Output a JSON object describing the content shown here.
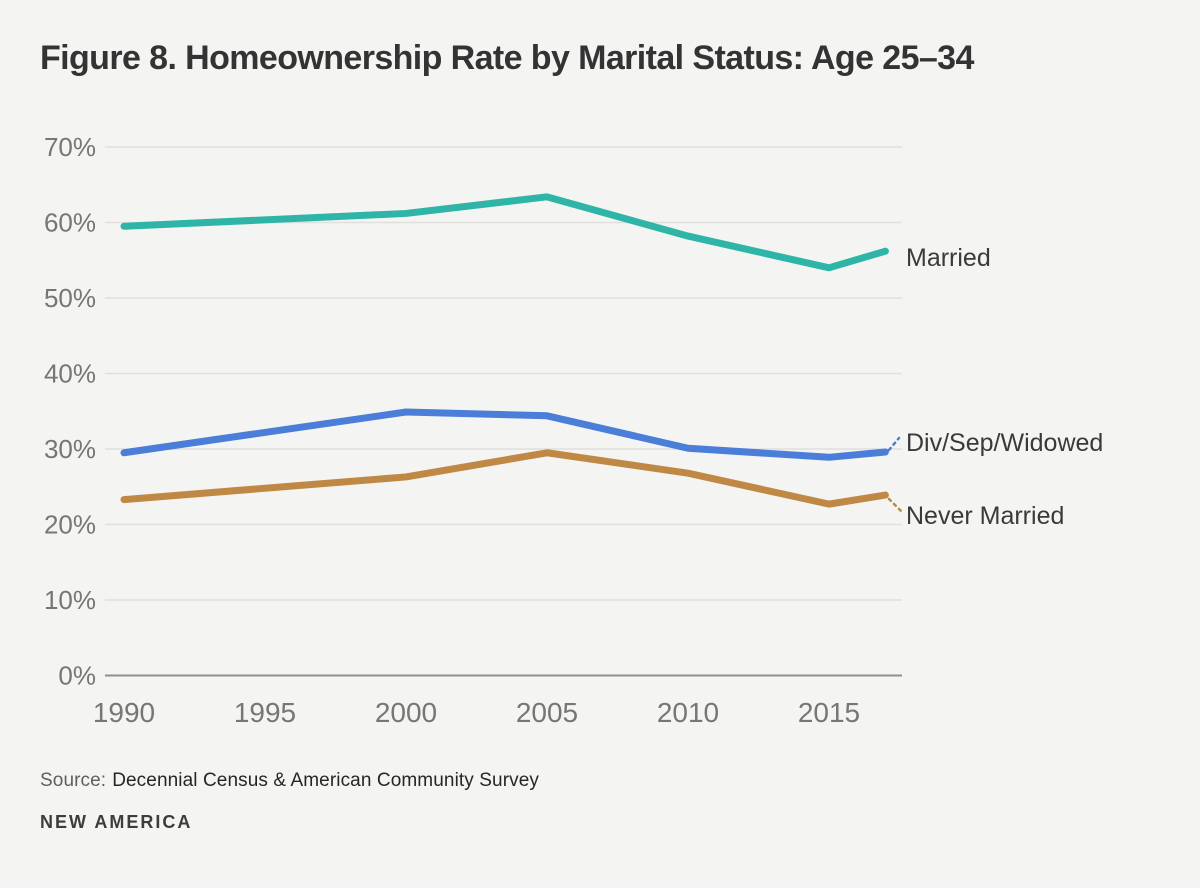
{
  "header": {
    "title": "Figure 8. Homeownership Rate by Marital Status: Age 25–34"
  },
  "chart_data": {
    "type": "line",
    "x": [
      1990,
      2000,
      2005,
      2010,
      2015,
      2017
    ],
    "x_tick_labels": [
      "1990",
      "1995",
      "2000",
      "2005",
      "2010",
      "2015"
    ],
    "x_ticks": [
      1990,
      1995,
      2000,
      2005,
      2010,
      2015
    ],
    "y_ticks": [
      0,
      10,
      20,
      30,
      40,
      50,
      60,
      70
    ],
    "y_tick_suffix": "%",
    "xlim": [
      1990,
      2017
    ],
    "ylim": [
      0,
      75
    ],
    "grid": "horizontal",
    "legend_position": "right-of-line-ends",
    "colors": {
      "background": "#f4f4f2",
      "gridline": "#e0dfdd",
      "zero_line": "#8f8f8f",
      "tick_text": "#767676",
      "series_label_text": "#3a3a3a"
    },
    "series": [
      {
        "name": "Married",
        "color": "#2fb5a8",
        "values": [
          59.5,
          61.2,
          63.4,
          58.2,
          54.0,
          56.2
        ]
      },
      {
        "name": "Div/Sep/Widowed",
        "color": "#4a7ed8",
        "values": [
          29.5,
          34.9,
          34.4,
          30.1,
          28.9,
          29.6
        ]
      },
      {
        "name": "Never Married",
        "color": "#bf8845",
        "values": [
          23.3,
          26.3,
          29.5,
          26.8,
          22.7,
          23.9
        ]
      }
    ]
  },
  "footer": {
    "source_label": "Source:",
    "source_text": "Decennial Census & American Community Survey",
    "brand": "NEW AMERICA"
  }
}
